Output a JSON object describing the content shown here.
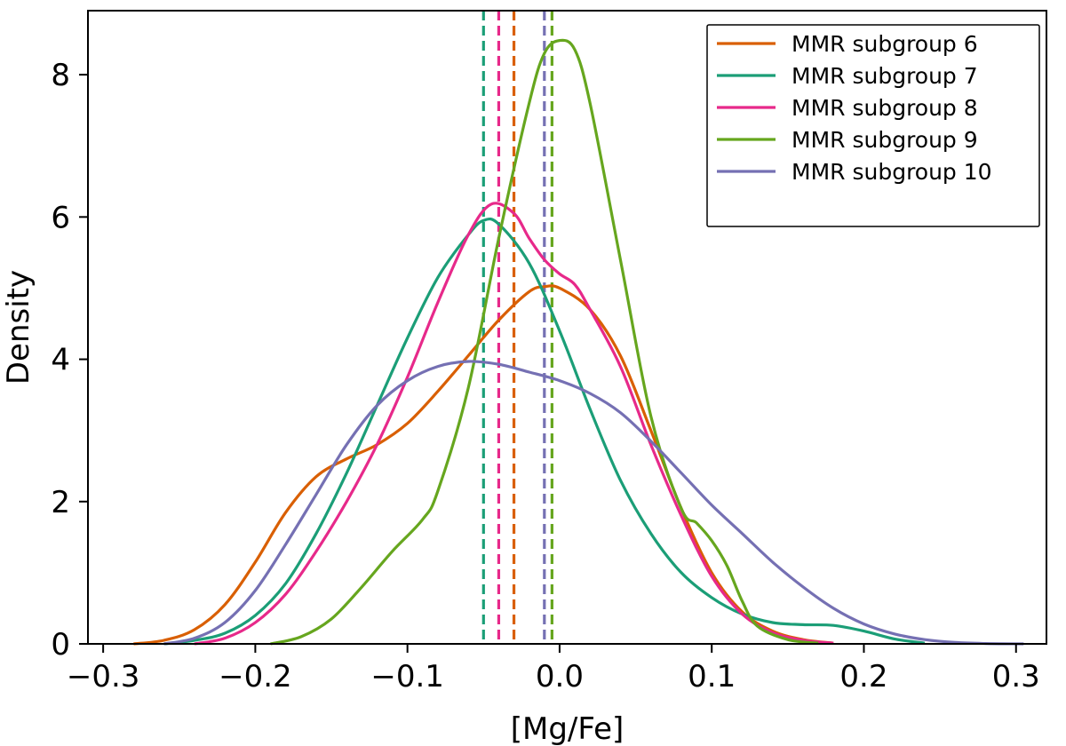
{
  "chart_data": {
    "type": "line",
    "title": "",
    "xlabel": "[Mg/Fe]",
    "ylabel": "Density",
    "xlim": [
      -0.31,
      0.32
    ],
    "ylim": [
      0,
      8.9
    ],
    "xticks": [
      -0.3,
      -0.2,
      -0.1,
      0.0,
      0.1,
      0.2,
      0.3
    ],
    "xtick_labels": [
      "−0.3",
      "−0.2",
      "−0.1",
      "0.0",
      "0.1",
      "0.2",
      "0.3"
    ],
    "yticks": [
      0,
      2,
      4,
      6,
      8
    ],
    "ytick_labels": [
      "0",
      "2",
      "4",
      "6",
      "8"
    ],
    "grid": false,
    "legend_position": "top-right",
    "series": [
      {
        "name": "MMR subgroup 6",
        "color": "#d95f02",
        "mean": -0.03,
        "points": [
          [
            -0.28,
            0
          ],
          [
            -0.26,
            0.05
          ],
          [
            -0.24,
            0.2
          ],
          [
            -0.22,
            0.55
          ],
          [
            -0.2,
            1.15
          ],
          [
            -0.18,
            1.85
          ],
          [
            -0.16,
            2.35
          ],
          [
            -0.14,
            2.6
          ],
          [
            -0.12,
            2.8
          ],
          [
            -0.1,
            3.1
          ],
          [
            -0.08,
            3.55
          ],
          [
            -0.06,
            4.05
          ],
          [
            -0.04,
            4.55
          ],
          [
            -0.02,
            4.95
          ],
          [
            -0.01,
            5.02
          ],
          [
            0.0,
            5.0
          ],
          [
            0.02,
            4.7
          ],
          [
            0.04,
            4.05
          ],
          [
            0.06,
            3.0
          ],
          [
            0.08,
            1.9
          ],
          [
            0.1,
            1.0
          ],
          [
            0.12,
            0.45
          ],
          [
            0.14,
            0.18
          ],
          [
            0.16,
            0.06
          ],
          [
            0.18,
            0.01
          ]
        ]
      },
      {
        "name": "MMR subgroup 7",
        "color": "#1b9e77",
        "mean": -0.05,
        "points": [
          [
            -0.26,
            0
          ],
          [
            -0.24,
            0.05
          ],
          [
            -0.22,
            0.15
          ],
          [
            -0.2,
            0.4
          ],
          [
            -0.18,
            0.85
          ],
          [
            -0.16,
            1.55
          ],
          [
            -0.14,
            2.4
          ],
          [
            -0.12,
            3.35
          ],
          [
            -0.1,
            4.3
          ],
          [
            -0.08,
            5.15
          ],
          [
            -0.06,
            5.75
          ],
          [
            -0.05,
            5.95
          ],
          [
            -0.04,
            5.9
          ],
          [
            -0.02,
            5.35
          ],
          [
            0.0,
            4.4
          ],
          [
            0.02,
            3.3
          ],
          [
            0.04,
            2.3
          ],
          [
            0.06,
            1.55
          ],
          [
            0.08,
            1.0
          ],
          [
            0.1,
            0.65
          ],
          [
            0.12,
            0.42
          ],
          [
            0.14,
            0.3
          ],
          [
            0.16,
            0.27
          ],
          [
            0.18,
            0.26
          ],
          [
            0.2,
            0.18
          ],
          [
            0.22,
            0.07
          ],
          [
            0.24,
            0.01
          ]
        ]
      },
      {
        "name": "MMR subgroup 8",
        "color": "#e7298a",
        "mean": -0.04,
        "points": [
          [
            -0.24,
            0
          ],
          [
            -0.22,
            0.08
          ],
          [
            -0.2,
            0.3
          ],
          [
            -0.18,
            0.7
          ],
          [
            -0.16,
            1.3
          ],
          [
            -0.14,
            2.0
          ],
          [
            -0.12,
            2.8
          ],
          [
            -0.1,
            3.75
          ],
          [
            -0.08,
            4.8
          ],
          [
            -0.06,
            5.75
          ],
          [
            -0.045,
            6.18
          ],
          [
            -0.03,
            6.05
          ],
          [
            -0.02,
            5.7
          ],
          [
            -0.01,
            5.4
          ],
          [
            0.0,
            5.2
          ],
          [
            0.01,
            5.05
          ],
          [
            0.02,
            4.7
          ],
          [
            0.04,
            3.9
          ],
          [
            0.06,
            2.8
          ],
          [
            0.08,
            1.8
          ],
          [
            0.1,
            0.95
          ],
          [
            0.12,
            0.42
          ],
          [
            0.14,
            0.16
          ],
          [
            0.16,
            0.05
          ],
          [
            0.18,
            0.01
          ]
        ]
      },
      {
        "name": "MMR subgroup 9",
        "color": "#66a61e",
        "mean": -0.005,
        "points": [
          [
            -0.19,
            0
          ],
          [
            -0.17,
            0.1
          ],
          [
            -0.15,
            0.35
          ],
          [
            -0.13,
            0.8
          ],
          [
            -0.11,
            1.3
          ],
          [
            -0.09,
            1.75
          ],
          [
            -0.08,
            2.15
          ],
          [
            -0.06,
            3.6
          ],
          [
            -0.04,
            5.7
          ],
          [
            -0.02,
            7.6
          ],
          [
            -0.01,
            8.3
          ],
          [
            0.0,
            8.48
          ],
          [
            0.01,
            8.35
          ],
          [
            0.02,
            7.6
          ],
          [
            0.04,
            5.4
          ],
          [
            0.06,
            3.2
          ],
          [
            0.08,
            1.9
          ],
          [
            0.09,
            1.7
          ],
          [
            0.1,
            1.45
          ],
          [
            0.11,
            1.1
          ],
          [
            0.12,
            0.6
          ],
          [
            0.13,
            0.25
          ],
          [
            0.15,
            0.06
          ],
          [
            0.17,
            0.01
          ]
        ]
      },
      {
        "name": "MMR subgroup 10",
        "color": "#7570b3",
        "mean": -0.01,
        "points": [
          [
            -0.26,
            0
          ],
          [
            -0.24,
            0.08
          ],
          [
            -0.22,
            0.3
          ],
          [
            -0.2,
            0.75
          ],
          [
            -0.18,
            1.4
          ],
          [
            -0.16,
            2.1
          ],
          [
            -0.14,
            2.8
          ],
          [
            -0.12,
            3.35
          ],
          [
            -0.1,
            3.7
          ],
          [
            -0.08,
            3.9
          ],
          [
            -0.06,
            3.97
          ],
          [
            -0.04,
            3.93
          ],
          [
            -0.02,
            3.82
          ],
          [
            0.0,
            3.7
          ],
          [
            0.02,
            3.52
          ],
          [
            0.04,
            3.25
          ],
          [
            0.06,
            2.85
          ],
          [
            0.08,
            2.4
          ],
          [
            0.1,
            1.95
          ],
          [
            0.12,
            1.55
          ],
          [
            0.14,
            1.15
          ],
          [
            0.16,
            0.8
          ],
          [
            0.18,
            0.5
          ],
          [
            0.2,
            0.28
          ],
          [
            0.22,
            0.14
          ],
          [
            0.24,
            0.06
          ],
          [
            0.26,
            0.02
          ],
          [
            0.28,
            0.005
          ],
          [
            0.305,
            0
          ]
        ]
      }
    ]
  }
}
